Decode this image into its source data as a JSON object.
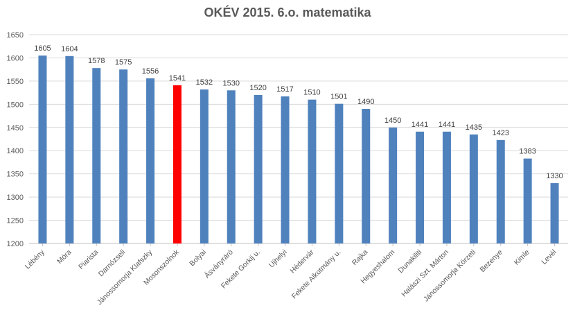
{
  "chart_data": {
    "type": "bar",
    "title": "OKÉV 2015. 6.o. matematika",
    "xlabel": "",
    "ylabel": "",
    "ylim": [
      1200,
      1650
    ],
    "yticks": [
      1200,
      1250,
      1300,
      1350,
      1400,
      1450,
      1500,
      1550,
      1600,
      1650
    ],
    "grid": true,
    "legend": "none",
    "bar_color": "#4f81bd",
    "highlight_color": "#ff0000",
    "highlight_category": "Mosonszolnok",
    "categories": [
      "Lébény",
      "Móra",
      "Piarista",
      "Darnózseli",
      "Jánossomorja Klafszky",
      "Mosonszolnok",
      "Bolyai",
      "Ásványráró",
      "Fekete Gorkij u.",
      "Ujhelyi",
      "Hédervár",
      "Fekete Alkotmány u.",
      "Rajka",
      "Hegyeshalom",
      "Dunakiliti",
      "Halászi Szt. Márton",
      "Jánossomorja Körzeti",
      "Bezenye",
      "Kimle",
      "Levél"
    ],
    "values": [
      1605,
      1604,
      1578,
      1575,
      1556,
      1541,
      1532,
      1530,
      1520,
      1517,
      1510,
      1501,
      1490,
      1450,
      1441,
      1441,
      1435,
      1423,
      1383,
      1330
    ]
  }
}
